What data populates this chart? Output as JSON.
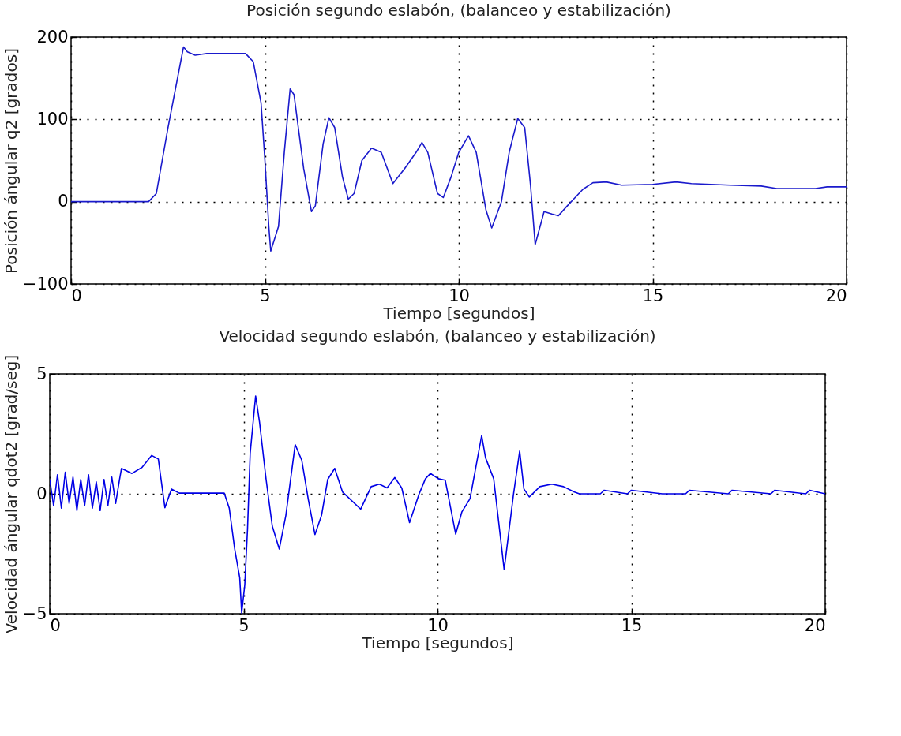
{
  "chart_data": [
    {
      "type": "line",
      "title": "Posición segundo eslabón, (balanceo y estabilización)",
      "xlabel": "Tiempo [segundos]",
      "ylabel": "Posición ángular q2 [grados]",
      "xlim": [
        0,
        20
      ],
      "xticks": [
        0,
        5,
        10,
        15,
        20
      ],
      "ylim": [
        -100,
        200
      ],
      "yticks": [
        -100,
        0,
        100,
        200
      ],
      "grid": true,
      "series": [
        {
          "color": "#1a1acc",
          "x": [
            0,
            2.0,
            2.2,
            2.5,
            2.9,
            3.0,
            3.2,
            3.5,
            4.5,
            4.7,
            4.9,
            5.0,
            5.1,
            5.15,
            5.35,
            5.5,
            5.65,
            5.75,
            6.0,
            6.2,
            6.3,
            6.5,
            6.65,
            6.8,
            7.0,
            7.15,
            7.3,
            7.5,
            7.75,
            8.0,
            8.3,
            8.6,
            8.9,
            9.05,
            9.2,
            9.45,
            9.6,
            9.8,
            10.0,
            10.25,
            10.45,
            10.7,
            10.85,
            11.1,
            11.3,
            11.52,
            11.7,
            11.85,
            11.97,
            12.2,
            12.4,
            12.57,
            12.8,
            13.2,
            13.46,
            13.8,
            14.2,
            15,
            15.6,
            16,
            17,
            17.8,
            18.2,
            19.2,
            19.5,
            20
          ],
          "values": [
            0,
            0,
            10,
            90,
            188,
            182,
            178,
            180,
            180,
            170,
            120,
            50,
            -30,
            -60,
            -30,
            60,
            137,
            130,
            40,
            -12,
            -5,
            70,
            102,
            90,
            30,
            3,
            10,
            50,
            65,
            60,
            22,
            40,
            60,
            72,
            60,
            10,
            5,
            30,
            60,
            80,
            60,
            -10,
            -32,
            0,
            60,
            101,
            90,
            20,
            -52,
            -12,
            -15,
            -17,
            -5,
            15,
            23,
            24,
            20,
            21,
            24,
            22,
            20,
            19,
            16,
            16,
            18,
            18
          ]
        }
      ]
    },
    {
      "type": "line",
      "title": "Velocidad segundo eslabón, (balanceo y estabilización)",
      "xlabel": "Tiempo [segundos]",
      "ylabel": "Velocidad ángular qdot2 [grad/seg]",
      "xlim": [
        0,
        20
      ],
      "xticks": [
        0,
        5,
        10,
        15,
        20
      ],
      "ylim": [
        -5,
        5
      ],
      "yticks": [
        -5,
        0,
        5
      ],
      "grid": true,
      "series": [
        {
          "color": "#0000e6",
          "x": [
            0,
            0.1,
            0.2,
            0.3,
            0.4,
            0.5,
            0.6,
            0.7,
            0.8,
            0.9,
            1.0,
            1.1,
            1.2,
            1.3,
            1.4,
            1.5,
            1.6,
            1.7,
            1.8,
            1.85,
            2.12,
            2.38,
            2.63,
            2.8,
            2.97,
            3.14,
            3.34,
            4.5,
            4.63,
            4.77,
            4.9,
            4.95,
            5.03,
            5.1,
            5.17,
            5.31,
            5.41,
            5.58,
            5.74,
            5.92,
            6.09,
            6.33,
            6.5,
            6.67,
            6.84,
            7.01,
            7.17,
            7.35,
            7.55,
            8.02,
            8.29,
            8.5,
            8.7,
            8.9,
            9.08,
            9.28,
            9.52,
            9.69,
            9.82,
            10.02,
            10.2,
            10.47,
            10.63,
            10.84,
            11.14,
            11.24,
            11.45,
            11.72,
            11.96,
            12.12,
            12.23,
            12.37,
            12.64,
            12.95,
            13.25,
            13.52,
            13.66,
            14.2,
            14.3,
            14.9,
            15.0,
            15.8,
            16.4,
            16.5,
            17.5,
            17.6,
            18.6,
            18.7,
            19.5,
            19.6,
            20
          ],
          "values": [
            0.6,
            -0.5,
            0.8,
            -0.6,
            0.9,
            -0.4,
            0.7,
            -0.7,
            0.6,
            -0.5,
            0.8,
            -0.6,
            0.5,
            -0.7,
            0.6,
            -0.5,
            0.7,
            -0.4,
            0.6,
            1.06,
            0.85,
            1.1,
            1.6,
            1.45,
            -0.58,
            0.2,
            0.03,
            0.03,
            -0.6,
            -2.3,
            -3.5,
            -4.97,
            -3.8,
            -1.5,
            1.7,
            4.08,
            3.0,
            0.6,
            -1.35,
            -2.3,
            -0.9,
            2.05,
            1.4,
            -0.25,
            -1.7,
            -0.9,
            0.6,
            1.06,
            0.08,
            -0.64,
            0.3,
            0.4,
            0.25,
            0.68,
            0.24,
            -1.2,
            -0.03,
            0.63,
            0.85,
            0.63,
            0.57,
            -1.68,
            -0.75,
            -0.2,
            2.43,
            1.5,
            0.63,
            -3.16,
            -0.03,
            1.78,
            0.2,
            -0.13,
            0.3,
            0.4,
            0.3,
            0.08,
            0,
            0,
            0.15,
            0,
            0.15,
            0,
            0,
            0.15,
            0,
            0.15,
            0,
            0.15,
            0,
            0.15,
            0
          ]
        }
      ]
    }
  ]
}
